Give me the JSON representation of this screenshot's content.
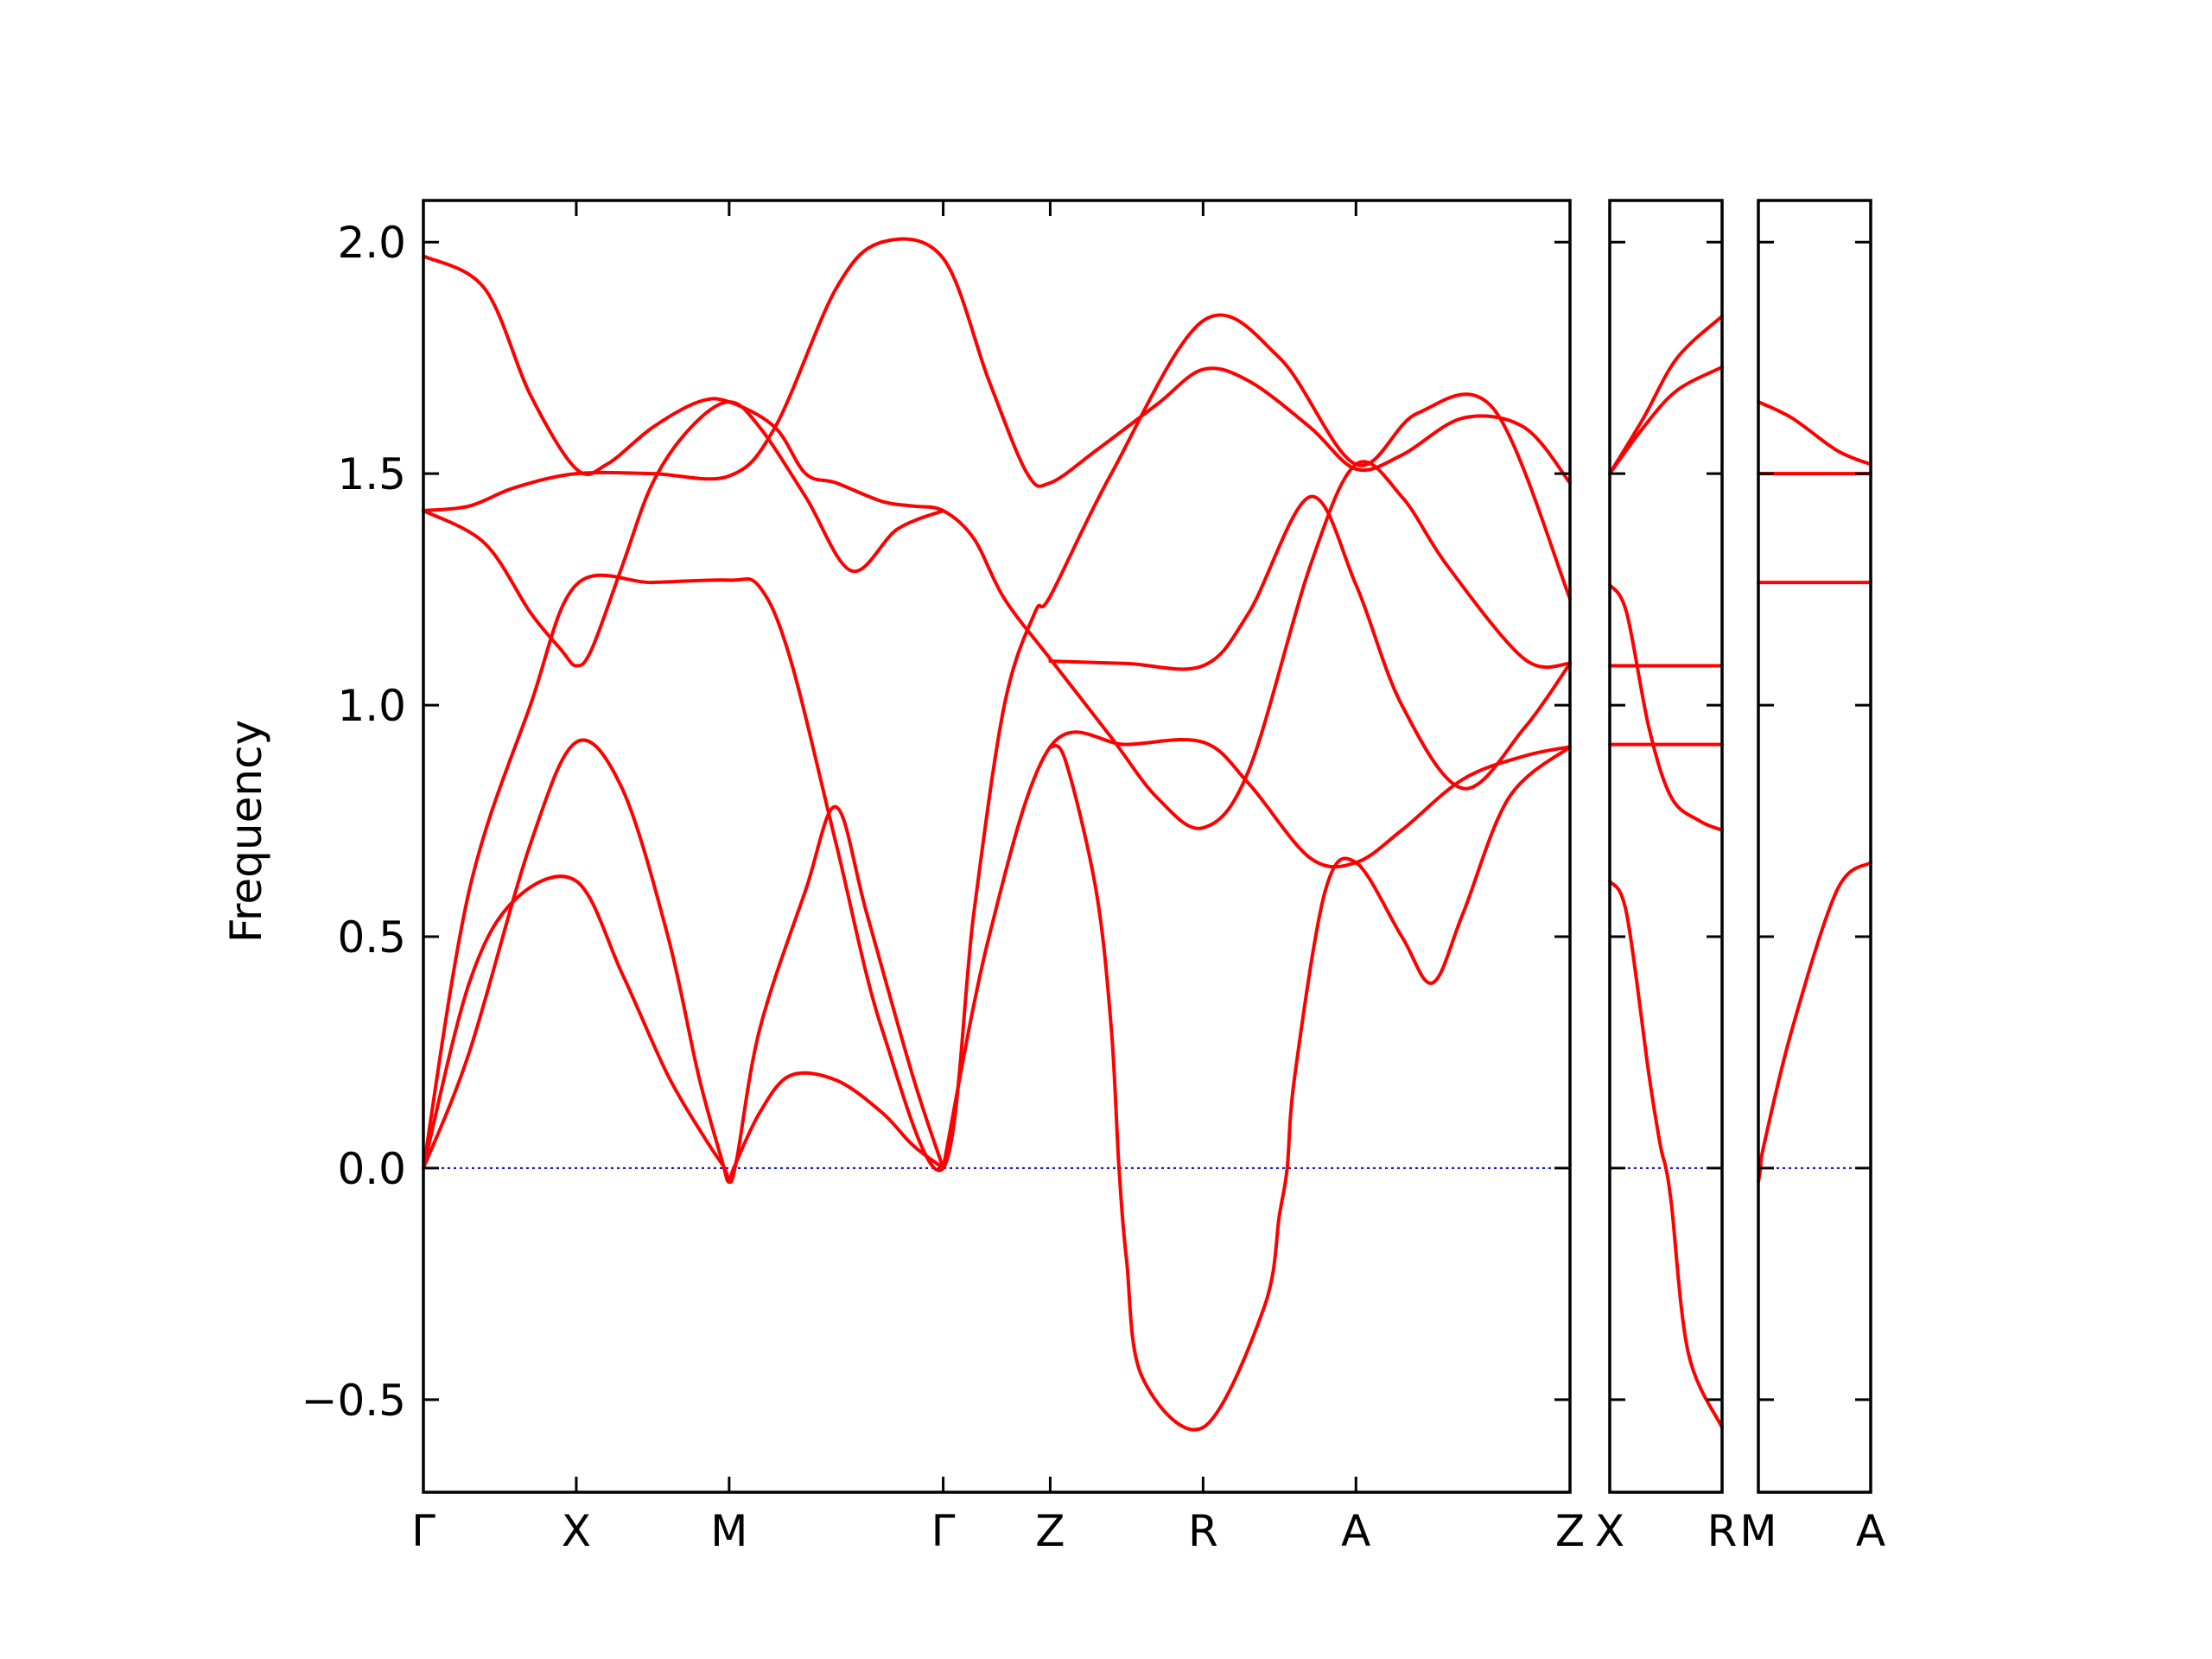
{
  "chart_data": {
    "type": "line",
    "ylabel": "Frequency",
    "ylim": [
      -0.7,
      2.09
    ],
    "yticks": [
      -0.5,
      0.0,
      0.5,
      1.0,
      1.5,
      2.0
    ],
    "ytick_labels": [
      "−0.5",
      "0.0",
      "0.5",
      "1.0",
      "1.5",
      "2.0"
    ],
    "grid": false,
    "colors": {
      "band": "#ff0000",
      "zero_line": "#0000cc"
    },
    "panels": [
      {
        "name": "Gamma-X-M-Gamma-Z-R-A-Z",
        "xlim": [
          0,
          7.5
        ],
        "ticks": [
          {
            "x": 0,
            "label": "Γ"
          },
          {
            "x": 1,
            "label": "X"
          },
          {
            "x": 2,
            "label": "M"
          },
          {
            "x": 3.4,
            "label": "Γ"
          },
          {
            "x": 4.1,
            "label": "Z"
          },
          {
            "x": 5.1,
            "label": "R"
          },
          {
            "x": 6.1,
            "label": "A"
          },
          {
            "x": 7.5,
            "label": "Z"
          }
        ],
        "series": [
          {
            "x": [
              0,
              0.4,
              0.7,
              1,
              1.2,
              1.5,
              1.8,
              2,
              2.3,
              2.5,
              2.7,
              3,
              3.2,
              3.4,
              3.6,
              3.8,
              4.1,
              4.5,
              4.8,
              5.1,
              5.4,
              5.8,
              6.1,
              6.4,
              6.7,
              7.2,
              7.5
            ],
            "y": [
              1.97,
              1.9,
              1.67,
              1.51,
              1.52,
              1.6,
              1.655,
              1.655,
              1.6,
              1.5,
              1.48,
              1.44,
              1.43,
              1.42,
              1.36,
              1.23,
              1.1,
              0.93,
              0.8,
              0.735,
              0.86,
              1.3,
              1.52,
              1.45,
              1.3,
              1.1,
              1.09
            ]
          },
          {
            "x": [
              0,
              0.3,
              0.6,
              1,
              1.5,
              2,
              2.3,
              2.7,
              3,
              3.4,
              3.7,
              3.95,
              4.1,
              4.4,
              4.8,
              5.1,
              5.4,
              5.8,
              6.1,
              6.4,
              6.8,
              7.2,
              7.5
            ],
            "y": [
              1.42,
              1.43,
              1.47,
              1.5,
              1.5,
              1.495,
              1.6,
              1.9,
              2.0,
              1.965,
              1.7,
              1.5,
              1.48,
              1.55,
              1.65,
              1.725,
              1.7,
              1.6,
              1.51,
              1.54,
              1.62,
              1.6,
              1.48
            ]
          },
          {
            "x": [
              0,
              0.4,
              0.7,
              0.9,
              1,
              1.1,
              1.3,
              1.5,
              1.75,
              2,
              2.2,
              2.5,
              2.8,
              3.1,
              3.4
            ],
            "y": [
              1.42,
              1.35,
              1.2,
              1.12,
              1.085,
              1.12,
              1.3,
              1.48,
              1.6,
              1.655,
              1.6,
              1.45,
              1.29,
              1.38,
              1.42
            ]
          },
          {
            "x": [
              0,
              0.3,
              0.7,
              1,
              1.5,
              2,
              2.2,
              2.4,
              2.7,
              3,
              3.4,
              3.6,
              3.8,
              4.0,
              4.1,
              4.5,
              5.1,
              5.6,
              6.1,
              6.5,
              7,
              7.5
            ],
            "y": [
              0,
              0.6,
              1.0,
              1.26,
              1.265,
              1.27,
              1.255,
              1.1,
              0.7,
              0.3,
              0,
              0.55,
              1.0,
              1.2,
              1.235,
              1.5,
              1.83,
              1.75,
              1.52,
              1.63,
              1.64,
              1.23
            ]
          },
          {
            "x": [
              0,
              0.3,
              0.7,
              1,
              1.3,
              1.6,
              1.8,
              1.95,
              2,
              2.05,
              2.2,
              2.5,
              2.7,
              2.9,
              3.2,
              3.4
            ],
            "y": [
              0,
              0.25,
              0.7,
              0.92,
              0.82,
              0.5,
              0.2,
              0.02,
              -0.03,
              0.02,
              0.3,
              0.6,
              0.78,
              0.55,
              0.2,
              0
            ]
          },
          {
            "x": [
              0,
              0.3,
              0.6,
              1,
              1.3,
              1.6,
              1.85,
              1.97,
              2,
              2.03,
              2.2,
              2.4,
              2.7,
              3,
              3.2,
              3.4
            ],
            "y": [
              0,
              0.4,
              0.58,
              0.62,
              0.42,
              0.2,
              0.06,
              0.0,
              -0.03,
              0.0,
              0.12,
              0.2,
              0.19,
              0.12,
              0.05,
              0
            ],
            "kind": "lower"
          },
          {
            "x": [
              3.4,
              3.7,
              4.1,
              4.6,
              5.1,
              5.4,
              5.8,
              6.1,
              6.4,
              6.8,
              7.2,
              7.5
            ],
            "y": [
              0,
              0.5,
              0.91,
              0.915,
              0.92,
              0.83,
              0.67,
              0.66,
              0.73,
              0.84,
              0.89,
              0.91
            ]
          },
          {
            "x": [
              4.1,
              4.2,
              4.4,
              4.5,
              4.55,
              4.6,
              4.7,
              5.1,
              5.5,
              5.6,
              5.65,
              5.7,
              5.9,
              6.1,
              6.4,
              6.6,
              6.8,
              7.1,
              7.5
            ],
            "y": [
              0.91,
              0.88,
              0.6,
              0.3,
              0,
              -0.2,
              -0.45,
              -0.56,
              -0.3,
              -0.1,
              0,
              0.2,
              0.6,
              0.66,
              0.5,
              0.4,
              0.55,
              0.8,
              0.91
            ]
          },
          {
            "x": [
              4.1,
              4.6,
              5.1,
              5.4,
              5.8,
              6.1,
              6.4,
              6.8,
              7.2,
              7.5
            ],
            "y": [
              1.095,
              1.09,
              1.085,
              1.2,
              1.45,
              1.26,
              1.0,
              0.82,
              0.95,
              1.09
            ]
          }
        ]
      },
      {
        "name": "X-R",
        "xlim": [
          0,
          1
        ],
        "ticks": [
          {
            "x": 0,
            "label": "X"
          },
          {
            "x": 1,
            "label": "R"
          }
        ],
        "series": [
          {
            "x": [
              0,
              0.3,
              0.6,
              1
            ],
            "y": [
              1.5,
              1.62,
              1.75,
              1.84
            ]
          },
          {
            "x": [
              0,
              0.3,
              0.6,
              1
            ],
            "y": [
              1.5,
              1.6,
              1.68,
              1.73
            ]
          },
          {
            "x": [
              0,
              1
            ],
            "y": [
              1.085,
              1.085
            ]
          },
          {
            "x": [
              0,
              1
            ],
            "y": [
              0.915,
              0.915
            ]
          },
          {
            "x": [
              0,
              0.15,
              0.35,
              0.55,
              0.8,
              1
            ],
            "y": [
              1.26,
              1.2,
              0.95,
              0.8,
              0.75,
              0.73
            ]
          },
          {
            "x": [
              0,
              0.15,
              0.35,
              0.45,
              0.5,
              0.55,
              0.7,
              1
            ],
            "y": [
              0.62,
              0.55,
              0.2,
              0.05,
              0,
              -0.08,
              -0.4,
              -0.56
            ]
          }
        ]
      },
      {
        "name": "M-A",
        "xlim": [
          0,
          1
        ],
        "ticks": [
          {
            "x": 0,
            "label": "M"
          },
          {
            "x": 1,
            "label": "A"
          }
        ],
        "series": [
          {
            "x": [
              0,
              0.3,
              0.7,
              1
            ],
            "y": [
              1.655,
              1.62,
              1.55,
              1.52
            ]
          },
          {
            "x": [
              0,
              1
            ],
            "y": [
              1.5,
              1.5
            ]
          },
          {
            "x": [
              0,
              1
            ],
            "y": [
              1.265,
              1.265
            ]
          },
          {
            "x": [
              0,
              0.02,
              0.05,
              0.3,
              0.7,
              1
            ],
            "y": [
              -0.03,
              0,
              0.05,
              0.3,
              0.6,
              0.66
            ]
          }
        ]
      }
    ]
  }
}
